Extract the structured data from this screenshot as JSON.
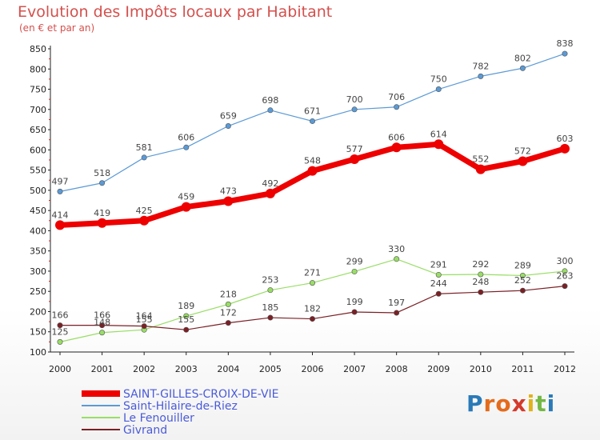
{
  "title": "Evolution des Impôts locaux par Habitant",
  "subtitle": "(en € et par an)",
  "logo": {
    "letters": [
      "P",
      "r",
      "o",
      "x",
      "i",
      "t",
      "i"
    ],
    "colors": [
      "#2a7ab8",
      "#e46b1c",
      "#e46b1c",
      "#d33a2b",
      "#e0b21d",
      "#73b845",
      "#2a7ab8"
    ]
  },
  "chart_data": {
    "type": "line",
    "title": "Evolution des Impôts locaux par Habitant",
    "subtitle": "(en € et par an)",
    "xlabel": "",
    "ylabel": "",
    "ylim": [
      100,
      850
    ],
    "yticks": [
      100,
      150,
      200,
      250,
      300,
      350,
      400,
      450,
      500,
      550,
      600,
      650,
      700,
      750,
      800,
      850
    ],
    "x": [
      "2000",
      "2001",
      "2002",
      "2003",
      "2004",
      "2005",
      "2006",
      "2007",
      "2008",
      "2009",
      "2010",
      "2011",
      "2012"
    ],
    "grid": false,
    "legend_position": "bottom-left",
    "series": [
      {
        "name": "SAINT-GILLES-CROIX-DE-VIE",
        "color": "#ee0000",
        "values": [
          414,
          419,
          425,
          459,
          473,
          492,
          548,
          577,
          606,
          614,
          552,
          572,
          603
        ],
        "labels": [
          "414",
          "419",
          "425",
          "459",
          "473",
          "492",
          "548",
          "577",
          "606",
          "614",
          "552",
          "572",
          "603"
        ]
      },
      {
        "name": "Saint-Hilaire-de-Riez",
        "color": "#5b9ad5",
        "values": [
          497,
          518,
          581,
          606,
          659,
          698,
          671,
          700,
          706,
          750,
          782,
          802,
          838
        ],
        "labels": [
          "497",
          "518",
          "581",
          "606",
          "659",
          "698",
          "671",
          "700",
          "706",
          "750",
          "782",
          "802",
          "838"
        ]
      },
      {
        "name": "Le Fenouiller",
        "color": "#99dd66",
        "values": [
          125,
          148,
          155,
          189,
          218,
          253,
          271,
          299,
          330,
          291,
          292,
          289,
          300
        ],
        "labels": [
          "125",
          "148",
          "155",
          "189",
          "218",
          "253",
          "271",
          "299",
          "330",
          "291",
          "292",
          "289",
          "300"
        ]
      },
      {
        "name": "Givrand",
        "color": "#7a2025",
        "values": [
          166,
          166,
          164,
          155,
          172,
          185,
          182,
          199,
          197,
          244,
          248,
          252,
          263
        ],
        "labels": [
          "166",
          "166",
          "164",
          "155",
          "172",
          "185",
          "182",
          "199",
          "197",
          "244",
          "248",
          "252",
          "263"
        ]
      }
    ]
  }
}
